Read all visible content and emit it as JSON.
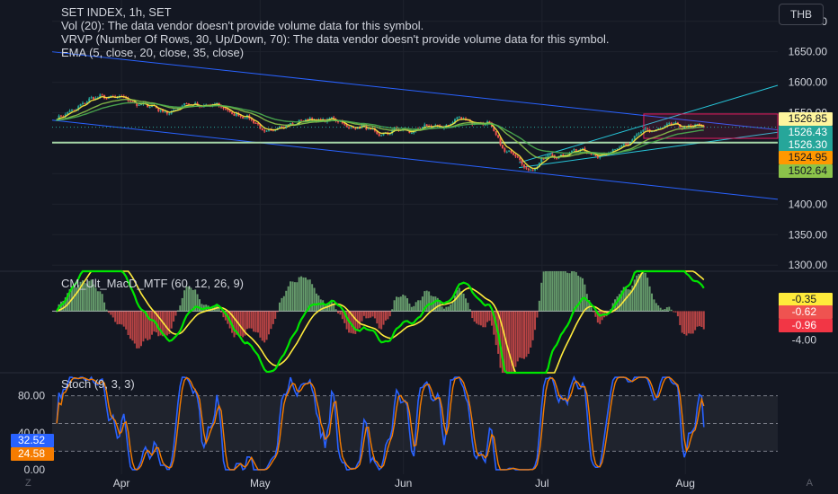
{
  "header": {
    "symbol": "SET INDEX, 1h, SET",
    "indicators": [
      "Vol (20): The data vendor doesn't provide volume data for this symbol.",
      "VRVP (Number Of Rows, 30, Up/Down, 70): The data vendor doesn't provide volume data for this symbol.",
      "EMA (5, close, 20, close, 35, close)"
    ],
    "currency": "THB"
  },
  "corner": {
    "left": "Z",
    "right": "A"
  },
  "colors": {
    "bg": "#131722",
    "grid": "#1e222d",
    "text": "#d1d4dc",
    "up": "#26a69a",
    "down": "#ef5350",
    "channel": "#2962ff",
    "aqua": "#26c6da",
    "hline": "#a5d6a7",
    "ema_fast": "#ffeb3b",
    "ema_mid": "#8bc34a",
    "ema_slow": "#4caf50",
    "macd_line": "#00e600",
    "signal_line": "#ffeb3b",
    "stoch_k": "#2962ff",
    "stoch_d": "#f57c00"
  },
  "chart_data": [
    {
      "type": "candlestick",
      "title": "SET INDEX, 1h, SET",
      "x_ticks": [
        "Apr",
        "May",
        "Jun",
        "Jul",
        "Aug"
      ],
      "y_ticks": [
        1300,
        1350,
        1400,
        1450,
        1500,
        1550,
        1600,
        1650,
        1700
      ],
      "ylim": [
        1290,
        1735
      ],
      "xlim": [
        "2024-03-17",
        "2024-08-21"
      ],
      "price_path": [
        [
          "2024-03-18",
          1540
        ],
        [
          "2024-03-25",
          1570
        ],
        [
          "2024-03-29",
          1578
        ],
        [
          "2024-04-05",
          1566
        ],
        [
          "2024-04-10",
          1552
        ],
        [
          "2024-04-17",
          1564
        ],
        [
          "2024-04-22",
          1560
        ],
        [
          "2024-04-29",
          1538
        ],
        [
          "2024-05-03",
          1518
        ],
        [
          "2024-05-08",
          1534
        ],
        [
          "2024-05-15",
          1540
        ],
        [
          "2024-05-21",
          1528
        ],
        [
          "2024-05-27",
          1517
        ],
        [
          "2024-06-03",
          1522
        ],
        [
          "2024-06-10",
          1530
        ],
        [
          "2024-06-14",
          1540
        ],
        [
          "2024-06-19",
          1530
        ],
        [
          "2024-06-24",
          1485
        ],
        [
          "2024-06-28",
          1458
        ],
        [
          "2024-07-03",
          1478
        ],
        [
          "2024-07-09",
          1488
        ],
        [
          "2024-07-15",
          1480
        ],
        [
          "2024-07-19",
          1500
        ],
        [
          "2024-07-24",
          1522
        ],
        [
          "2024-07-30",
          1530
        ],
        [
          "2024-08-05",
          1526
        ]
      ],
      "lines": [
        {
          "name": "upper channel",
          "from": [
            "2024-03-17",
            1650
          ],
          "to": [
            "2024-08-21",
            1522
          ]
        },
        {
          "name": "lower channel",
          "from": [
            "2024-03-17",
            1538
          ],
          "to": [
            "2024-08-21",
            1408
          ]
        },
        {
          "name": "rising channel top",
          "from": [
            "2024-06-26",
            1468
          ],
          "to": [
            "2024-08-21",
            1595
          ]
        },
        {
          "name": "rising channel bottom",
          "from": [
            "2024-06-26",
            1460
          ],
          "to": [
            "2024-08-21",
            1518
          ]
        },
        {
          "name": "horizontal level",
          "from": [
            "2024-03-17",
            1501
          ],
          "to": [
            "2024-08-21",
            1501
          ]
        }
      ],
      "highlight_box": {
        "x": [
          "2024-07-23",
          "2024-08-21"
        ],
        "y": [
          1508,
          1548
        ]
      },
      "price_labels": [
        1526.85,
        1526.43,
        1526.3,
        1524.95,
        1502.64
      ],
      "series": [
        {
          "values": "EMA 5"
        },
        {
          "values": "EMA 20"
        },
        {
          "values": "EMA 35"
        }
      ]
    },
    {
      "type": "bar+line",
      "title": "CM_Ult_MacD_MTF (60, 12, 26, 9)",
      "y_ticks": [
        -4.0
      ],
      "ylim": [
        -8.5,
        5.5
      ],
      "price_labels": [
        -0.35,
        -0.62,
        -0.96
      ]
    },
    {
      "type": "line",
      "title": "Stoch (9, 3, 3)",
      "y_ticks": [
        0.0,
        20.0,
        40.0,
        80.0
      ],
      "ylim": [
        -5,
        105
      ],
      "levels": [
        80,
        50,
        20
      ],
      "price_labels": [
        32.52,
        24.58
      ]
    }
  ]
}
